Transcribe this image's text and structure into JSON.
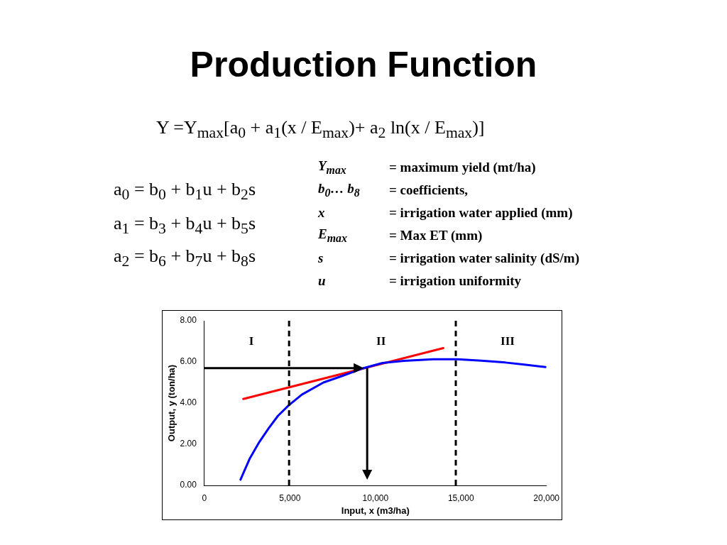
{
  "chart_data": {
    "type": "line",
    "title": "Production Function",
    "xlabel": "Input, x (m3/ha)",
    "ylabel": "Output, y (ton/ha)",
    "annotations": [
      "Y =Y$_{max}$[a$_{0}$ + a$_{1}$(x / E$_{max}$)+ a$_{2}$ ln(x / E$_{max}$)]",
      "a$_{0}$ = b$_{0}$ + b$_{1}$u + b$_{2}$s",
      "a$_{1}$ = b$_{3}$ + b$_{4}$u + b$_{5}$s",
      "a$_{2}$ = b$_{6}$ + b$_{7}$u + b$_{8}$s",
      "Y$_{max}$ = maximum yield (mt/ha)",
      "b$_{0}$… b$_{8}$ = coefficients,",
      "x = irrigation water applied (mm)",
      "E$_{max}$ = Max ET (mm)",
      "s = irrigation water salinity (dS/m)",
      "u = irrigation uniformity",
      "I",
      "II",
      "III"
    ],
    "series": [
      {
        "type": "line",
        "color": "#0000ff",
        "x": [
          2110,
          2660,
          3210,
          3760,
          4300,
          4930,
          5710,
          6960,
          8060,
          9310,
          10410,
          11660,
          13380,
          14790,
          16200,
          17600,
          18700,
          19950
        ],
        "values": [
          0.28,
          1.32,
          2.11,
          2.78,
          3.38,
          3.89,
          4.42,
          5.0,
          5.32,
          5.7,
          5.95,
          6.05,
          6.13,
          6.13,
          6.06,
          5.97,
          5.87,
          5.75
        ]
      },
      {
        "type": "line",
        "color": "#ff0000",
        "x": [
          2270,
          13970
        ],
        "values": [
          4.2,
          6.67
        ]
      }
    ],
    "ref_lines": [
      {
        "axis": "x",
        "value": 4950,
        "color": "#000000",
        "line_style": "dashed"
      },
      {
        "axis": "x",
        "value": 14700,
        "color": "#000000",
        "line_style": "dashed"
      }
    ],
    "xlim": [
      0,
      20000
    ],
    "ylim": [
      0,
      8
    ],
    "xticks": [
      0,
      {
        "value": 5000,
        "label": "5,000"
      },
      {
        "value": 10000,
        "label": "10,000"
      },
      {
        "value": 15000,
        "label": "15,000"
      },
      {
        "value": 20000,
        "label": "20,000"
      }
    ],
    "yticks": [
      {
        "value": 0,
        "label": "0.00"
      },
      {
        "value": 2,
        "label": "2.00"
      },
      {
        "value": 4,
        "label": "4.00"
      },
      {
        "value": 6,
        "label": "6.00"
      },
      {
        "value": 8,
        "label": "8.00"
      }
    ],
    "grid": false,
    "legend": false,
    "marker": "none"
  }
}
